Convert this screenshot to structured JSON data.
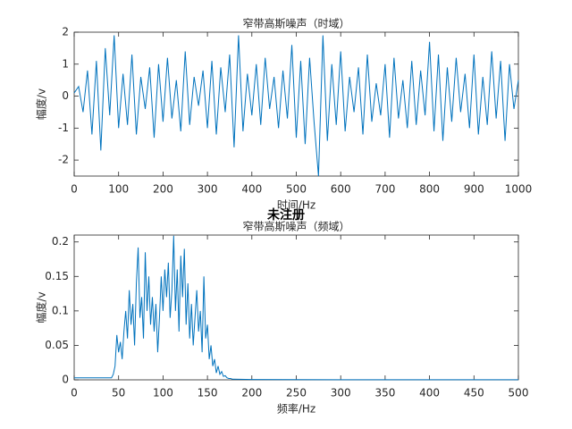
{
  "chart_data": [
    {
      "type": "line",
      "title": "窄带高斯噪声（时域）",
      "xlabel": "时间/Hz",
      "ylabel": "幅度/v",
      "x": [
        0,
        10,
        20,
        30,
        40,
        50,
        60,
        70,
        80,
        90,
        100,
        110,
        120,
        130,
        140,
        150,
        160,
        170,
        180,
        190,
        200,
        210,
        220,
        230,
        240,
        250,
        260,
        270,
        280,
        290,
        300,
        310,
        320,
        330,
        340,
        350,
        360,
        370,
        380,
        390,
        400,
        410,
        420,
        430,
        440,
        450,
        460,
        470,
        480,
        490,
        500,
        510,
        520,
        530,
        540,
        550,
        560,
        570,
        580,
        590,
        600,
        610,
        620,
        630,
        640,
        650,
        660,
        670,
        680,
        690,
        700,
        710,
        720,
        730,
        740,
        750,
        760,
        770,
        780,
        790,
        800,
        810,
        820,
        830,
        840,
        850,
        860,
        870,
        880,
        890,
        900,
        910,
        920,
        930,
        940,
        950,
        960,
        970,
        980,
        990,
        1000
      ],
      "series": [
        {
          "color": "#0072bd",
          "values": [
            0.1,
            0.3,
            -0.5,
            0.8,
            -1.2,
            1.1,
            -1.7,
            1.5,
            -0.6,
            1.9,
            -1.0,
            0.7,
            -0.9,
            1.3,
            -1.2,
            0.6,
            -0.4,
            0.9,
            -1.3,
            1.0,
            -0.8,
            1.2,
            -0.7,
            0.5,
            -1.1,
            1.4,
            -0.9,
            0.6,
            -0.3,
            0.8,
            -1.0,
            1.1,
            -1.2,
            0.9,
            -0.5,
            1.3,
            -1.6,
            1.9,
            -1.1,
            0.7,
            -0.6,
            1.0,
            -0.9,
            1.2,
            -0.4,
            0.6,
            -1.0,
            0.8,
            -0.7,
            1.6,
            -1.3,
            1.1,
            -1.5,
            1.2,
            -0.8,
            -2.5,
            1.9,
            -1.4,
            1.0,
            -0.9,
            1.4,
            -1.1,
            0.6,
            -0.5,
            0.9,
            -1.2,
            1.3,
            -0.8,
            0.4,
            -0.6,
            1.0,
            -1.3,
            1.2,
            -0.7,
            0.5,
            -1.0,
            1.1,
            -0.9,
            0.8,
            -0.6,
            1.7,
            -1.1,
            1.3,
            -1.4,
            0.9,
            -0.8,
            1.2,
            -0.5,
            0.7,
            -1.0,
            1.3,
            -1.2,
            0.6,
            -0.9,
            1.4,
            -0.7,
            1.1,
            -1.4,
            1.0,
            -0.4,
            0.5
          ]
        }
      ],
      "xlim": [
        0,
        1000
      ],
      "xticks": [
        0,
        100,
        200,
        300,
        400,
        500,
        600,
        700,
        800,
        900,
        1000
      ],
      "ylim": [
        -2.5,
        2
      ],
      "yticks": [
        -2,
        -1,
        0,
        1,
        2
      ]
    },
    {
      "type": "line",
      "title": "窄带高斯噪声（频域）",
      "xlabel": "频率/Hz",
      "ylabel": "幅度/v",
      "x": [
        0,
        20,
        40,
        42,
        44,
        46,
        48,
        50,
        52,
        54,
        56,
        58,
        60,
        62,
        64,
        66,
        68,
        70,
        72,
        74,
        76,
        78,
        80,
        82,
        84,
        86,
        88,
        90,
        92,
        94,
        96,
        98,
        100,
        102,
        104,
        106,
        108,
        110,
        112,
        114,
        116,
        118,
        120,
        122,
        124,
        126,
        128,
        130,
        132,
        134,
        136,
        138,
        140,
        142,
        144,
        146,
        148,
        150,
        152,
        154,
        156,
        158,
        160,
        162,
        164,
        166,
        168,
        170,
        172,
        174,
        176,
        178,
        180,
        200,
        250,
        300,
        350,
        400,
        450,
        500
      ],
      "series": [
        {
          "color": "#0072bd",
          "values": [
            0.003,
            0.003,
            0.003,
            0.003,
            0.008,
            0.02,
            0.065,
            0.04,
            0.055,
            0.03,
            0.07,
            0.1,
            0.06,
            0.13,
            0.08,
            0.11,
            0.05,
            0.14,
            0.192,
            0.09,
            0.12,
            0.06,
            0.185,
            0.1,
            0.15,
            0.08,
            0.12,
            0.07,
            0.11,
            0.04,
            0.09,
            0.15,
            0.1,
            0.16,
            0.12,
            0.17,
            0.09,
            0.13,
            0.209,
            0.1,
            0.16,
            0.07,
            0.18,
            0.12,
            0.19,
            0.08,
            0.14,
            0.06,
            0.11,
            0.05,
            0.09,
            0.13,
            0.07,
            0.1,
            0.04,
            0.15,
            0.06,
            0.08,
            0.03,
            0.05,
            0.02,
            0.03,
            0.01,
            0.02,
            0.008,
            0.012,
            0.005,
            0.006,
            0.003,
            0.002,
            0.002,
            0.001,
            0.001,
            0.0005,
            0.0003,
            0.0002,
            0.0002,
            0.0002,
            0.0002,
            0.0002
          ]
        }
      ],
      "xlim": [
        0,
        500
      ],
      "xticks": [
        0,
        50,
        100,
        150,
        200,
        250,
        300,
        350,
        400,
        450,
        500
      ],
      "ylim": [
        0,
        0.21
      ],
      "yticks": [
        0,
        0.05,
        0.1,
        0.15,
        0.2
      ]
    }
  ],
  "watermark": "未注册"
}
